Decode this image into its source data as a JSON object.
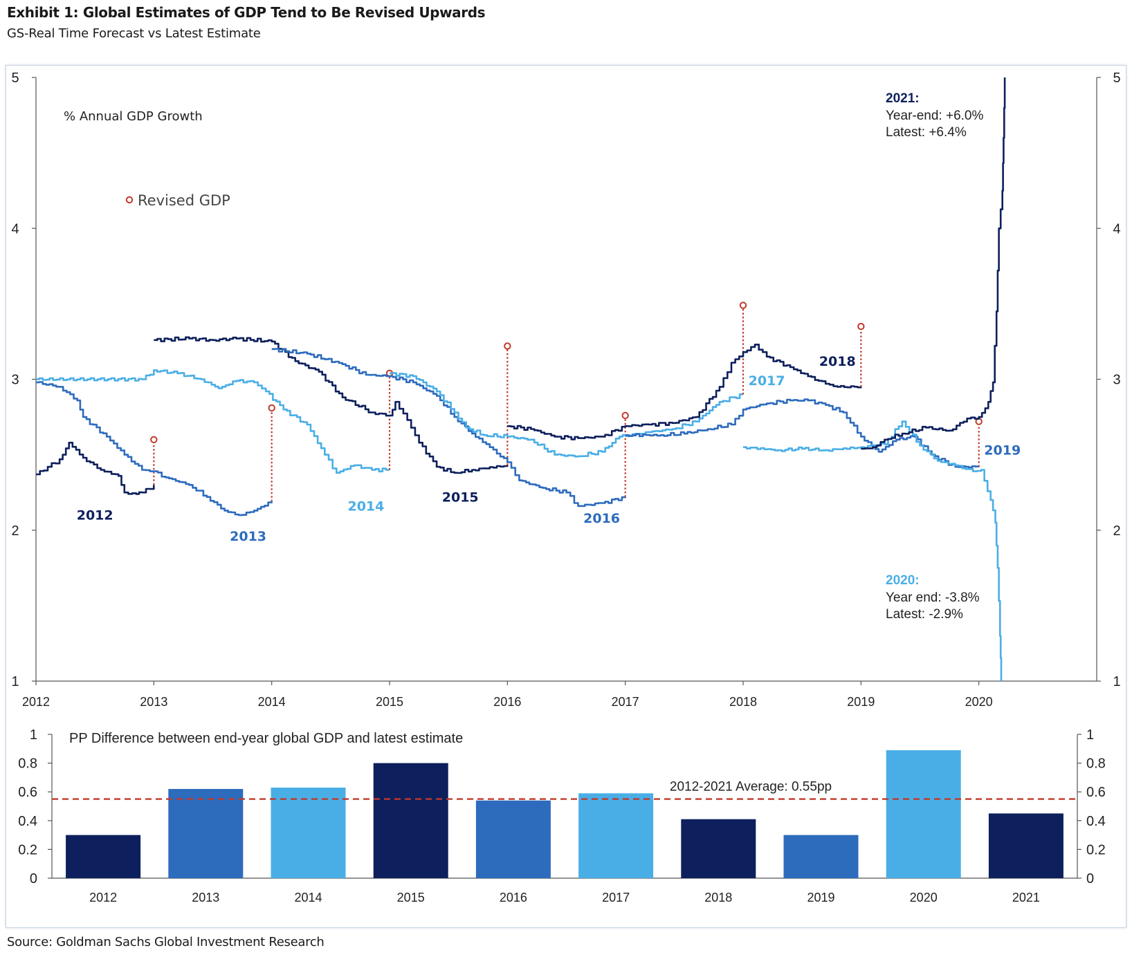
{
  "header": {
    "title": "Exhibit 1: Global Estimates of GDP Tend to Be Revised Upwards",
    "subtitle": "GS-Real Time Forecast vs Latest Estimate"
  },
  "footer": {
    "source": "Source: Goldman Sachs Global Investment Research"
  },
  "colors": {
    "navy": "#0d1f5c",
    "mid_blue": "#2d6bbd",
    "light_blue": "#4aaee6",
    "revision_red": "#c0392b",
    "axis": "#555555"
  },
  "chart_data": [
    {
      "type": "line",
      "annotation_title": "% Annual  GDP Growth",
      "legend": {
        "marker_label": "Revised GDP",
        "placement": "top-left"
      },
      "xlim": [
        2012,
        2021
      ],
      "x_ticks": [
        "2012",
        "2013",
        "2014",
        "2015",
        "2016",
        "2017",
        "2018",
        "2019",
        "2020"
      ],
      "ylim": [
        1,
        5
      ],
      "y_ticks": [
        "1",
        "2",
        "3",
        "4",
        "5"
      ],
      "grid": false,
      "series": [
        {
          "name": "2012",
          "color": "navy",
          "points": [
            [
              2012.0,
              2.37
            ],
            [
              2012.1,
              2.42
            ],
            [
              2012.2,
              2.47
            ],
            [
              2012.28,
              2.58
            ],
            [
              2012.4,
              2.48
            ],
            [
              2012.55,
              2.4
            ],
            [
              2012.7,
              2.36
            ],
            [
              2012.75,
              2.25
            ],
            [
              2012.85,
              2.24
            ],
            [
              2012.9,
              2.25
            ],
            [
              2013.0,
              2.3
            ]
          ],
          "revised": 2.6
        },
        {
          "name": "2013",
          "color": "mid_blue",
          "points": [
            [
              2012.0,
              2.98
            ],
            [
              2012.2,
              2.95
            ],
            [
              2012.35,
              2.86
            ],
            [
              2012.4,
              2.75
            ],
            [
              2012.6,
              2.62
            ],
            [
              2012.75,
              2.5
            ],
            [
              2012.9,
              2.4
            ],
            [
              2013.0,
              2.39
            ],
            [
              2013.1,
              2.35
            ],
            [
              2013.3,
              2.3
            ],
            [
              2013.45,
              2.22
            ],
            [
              2013.6,
              2.13
            ],
            [
              2013.72,
              2.1
            ],
            [
              2013.85,
              2.13
            ],
            [
              2014.0,
              2.19
            ]
          ],
          "revised": 2.81
        },
        {
          "name": "2014",
          "color": "light_blue",
          "points": [
            [
              2012.0,
              3.0
            ],
            [
              2012.9,
              3.0
            ],
            [
              2013.0,
              3.06
            ],
            [
              2013.2,
              3.04
            ],
            [
              2013.4,
              3.0
            ],
            [
              2013.55,
              2.94
            ],
            [
              2013.7,
              2.99
            ],
            [
              2013.85,
              2.98
            ],
            [
              2013.95,
              2.92
            ],
            [
              2014.1,
              2.8
            ],
            [
              2014.3,
              2.7
            ],
            [
              2014.45,
              2.5
            ],
            [
              2014.55,
              2.38
            ],
            [
              2014.7,
              2.43
            ],
            [
              2014.85,
              2.4
            ],
            [
              2015.0,
              2.4
            ]
          ],
          "revised": 3.04
        },
        {
          "name": "2015",
          "color": "navy",
          "points": [
            [
              2013.0,
              3.26
            ],
            [
              2013.3,
              3.27
            ],
            [
              2013.5,
              3.26
            ],
            [
              2013.7,
              3.27
            ],
            [
              2014.0,
              3.25
            ],
            [
              2014.2,
              3.12
            ],
            [
              2014.4,
              3.05
            ],
            [
              2014.6,
              2.88
            ],
            [
              2014.85,
              2.78
            ],
            [
              2015.0,
              2.76
            ],
            [
              2015.05,
              2.85
            ],
            [
              2015.15,
              2.73
            ],
            [
              2015.25,
              2.58
            ],
            [
              2015.4,
              2.42
            ],
            [
              2015.55,
              2.38
            ],
            [
              2015.7,
              2.4
            ],
            [
              2016.0,
              2.43
            ]
          ],
          "revised": 3.22
        },
        {
          "name": "2016",
          "color": "mid_blue",
          "points": [
            [
              2014.0,
              3.2
            ],
            [
              2014.3,
              3.17
            ],
            [
              2014.6,
              3.1
            ],
            [
              2014.8,
              3.03
            ],
            [
              2015.0,
              3.02
            ],
            [
              2015.2,
              2.98
            ],
            [
              2015.4,
              2.89
            ],
            [
              2015.55,
              2.75
            ],
            [
              2015.7,
              2.64
            ],
            [
              2015.85,
              2.55
            ],
            [
              2016.0,
              2.45
            ],
            [
              2016.1,
              2.33
            ],
            [
              2016.3,
              2.28
            ],
            [
              2016.5,
              2.25
            ],
            [
              2016.6,
              2.16
            ],
            [
              2016.8,
              2.18
            ],
            [
              2017.0,
              2.22
            ]
          ],
          "revised": 2.76
        },
        {
          "name": "2017",
          "color": "light_blue",
          "points": [
            [
              2015.0,
              3.04
            ],
            [
              2015.2,
              3.02
            ],
            [
              2015.4,
              2.92
            ],
            [
              2015.55,
              2.78
            ],
            [
              2015.65,
              2.68
            ],
            [
              2015.8,
              2.63
            ],
            [
              2016.0,
              2.62
            ],
            [
              2016.2,
              2.6
            ],
            [
              2016.4,
              2.5
            ],
            [
              2016.6,
              2.49
            ],
            [
              2016.8,
              2.52
            ],
            [
              2016.95,
              2.62
            ],
            [
              2017.2,
              2.65
            ],
            [
              2017.4,
              2.67
            ],
            [
              2017.6,
              2.72
            ],
            [
              2017.8,
              2.85
            ],
            [
              2018.0,
              2.9
            ]
          ],
          "revised": 3.49
        },
        {
          "name": "2018",
          "color": "navy",
          "points": [
            [
              2016.0,
              2.69
            ],
            [
              2016.2,
              2.67
            ],
            [
              2016.4,
              2.62
            ],
            [
              2016.6,
              2.61
            ],
            [
              2016.8,
              2.62
            ],
            [
              2017.0,
              2.69
            ],
            [
              2017.2,
              2.7
            ],
            [
              2017.4,
              2.71
            ],
            [
              2017.6,
              2.75
            ],
            [
              2017.8,
              2.95
            ],
            [
              2017.9,
              3.11
            ],
            [
              2018.0,
              3.18
            ],
            [
              2018.1,
              3.23
            ],
            [
              2018.2,
              3.15
            ],
            [
              2018.4,
              3.08
            ],
            [
              2018.55,
              3.02
            ],
            [
              2018.7,
              2.97
            ],
            [
              2018.8,
              2.95
            ],
            [
              2019.0,
              2.95
            ]
          ],
          "revised": 3.35
        },
        {
          "name": "2019",
          "color": "mid_blue",
          "points": [
            [
              2017.0,
              2.63
            ],
            [
              2017.3,
              2.63
            ],
            [
              2017.5,
              2.64
            ],
            [
              2017.7,
              2.67
            ],
            [
              2017.9,
              2.7
            ],
            [
              2018.0,
              2.8
            ],
            [
              2018.2,
              2.84
            ],
            [
              2018.4,
              2.86
            ],
            [
              2018.55,
              2.86
            ],
            [
              2018.7,
              2.83
            ],
            [
              2018.85,
              2.78
            ],
            [
              2019.0,
              2.62
            ],
            [
              2019.15,
              2.52
            ],
            [
              2019.3,
              2.6
            ],
            [
              2019.45,
              2.62
            ],
            [
              2019.6,
              2.5
            ],
            [
              2019.8,
              2.42
            ],
            [
              2020.0,
              2.42
            ]
          ],
          "revised": 2.72
        },
        {
          "name": "2020",
          "color": "light_blue",
          "points": [
            [
              2018.0,
              2.55
            ],
            [
              2018.3,
              2.53
            ],
            [
              2018.5,
              2.54
            ],
            [
              2018.7,
              2.53
            ],
            [
              2019.0,
              2.55
            ],
            [
              2019.2,
              2.57
            ],
            [
              2019.35,
              2.72
            ],
            [
              2019.5,
              2.56
            ],
            [
              2019.65,
              2.46
            ],
            [
              2019.8,
              2.43
            ],
            [
              2019.95,
              2.39
            ],
            [
              2020.02,
              2.4
            ],
            [
              2020.1,
              2.2
            ],
            [
              2020.14,
              2.05
            ],
            [
              2020.16,
              1.75
            ],
            [
              2020.18,
              1.3
            ],
            [
              2020.19,
              1.0
            ]
          ],
          "revised": null
        },
        {
          "name": "2021",
          "color": "navy",
          "points": [
            [
              2019.0,
              2.54
            ],
            [
              2019.1,
              2.55
            ],
            [
              2019.2,
              2.6
            ],
            [
              2019.35,
              2.64
            ],
            [
              2019.55,
              2.68
            ],
            [
              2019.75,
              2.66
            ],
            [
              2019.9,
              2.74
            ],
            [
              2020.0,
              2.75
            ],
            [
              2020.08,
              2.85
            ],
            [
              2020.12,
              2.98
            ],
            [
              2020.15,
              3.45
            ],
            [
              2020.17,
              4.0
            ],
            [
              2020.2,
              4.25
            ],
            [
              2020.21,
              4.6
            ],
            [
              2020.22,
              5.0
            ]
          ],
          "revised": null
        }
      ],
      "annotations": {
        "a2021": {
          "heading": "2021:",
          "line1": "Year-end:  +6.0%",
          "line2": "Latest:  +6.4%"
        },
        "a2020": {
          "heading": "2020:",
          "line1": "Year end:  -3.8%",
          "line2": "Latest:  -2.9%"
        }
      }
    },
    {
      "type": "bar",
      "annotation_title": "PP Difference between end-year global GDP and latest estimate",
      "categories": [
        "2012",
        "2013",
        "2014",
        "2015",
        "2016",
        "2017",
        "2018",
        "2019",
        "2020",
        "2021"
      ],
      "values": [
        0.3,
        0.62,
        0.63,
        0.8,
        0.54,
        0.59,
        0.41,
        0.3,
        0.89,
        0.45
      ],
      "colors": [
        "navy",
        "mid_blue",
        "light_blue",
        "navy",
        "mid_blue",
        "light_blue",
        "navy",
        "mid_blue",
        "light_blue",
        "navy"
      ],
      "ylim": [
        0,
        1
      ],
      "y_ticks": [
        "0",
        "0.2",
        "0.4",
        "0.6",
        "0.8",
        "1"
      ],
      "average": {
        "value": 0.55,
        "label": "2012-2021 Average:  0.55pp"
      },
      "grid": false
    }
  ]
}
